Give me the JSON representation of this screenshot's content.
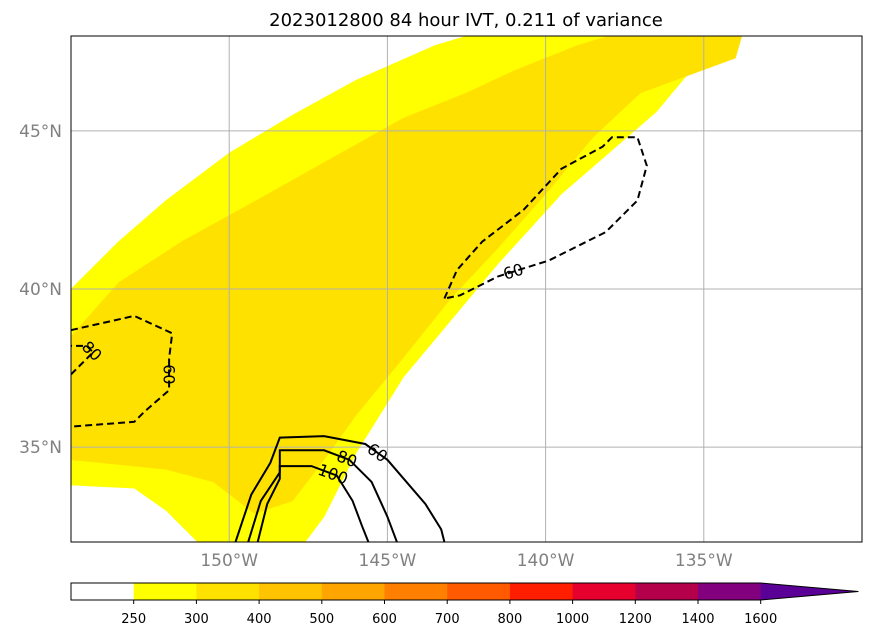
{
  "chart_data": {
    "type": "contour map",
    "title": "2023012800 84 hour IVT, 0.211 of variance",
    "xlabel": "",
    "ylabel": "",
    "lon_range": [
      -155,
      -130
    ],
    "lat_range": [
      32,
      48
    ],
    "x_ticks": [
      {
        "value": -150,
        "label": "150°W"
      },
      {
        "value": -145,
        "label": "145°W"
      },
      {
        "value": -140,
        "label": "140°W"
      },
      {
        "value": -135,
        "label": "135°W"
      }
    ],
    "y_ticks": [
      {
        "value": 35,
        "label": "35°N"
      },
      {
        "value": 40,
        "label": "40°N"
      },
      {
        "value": 45,
        "label": "45°N"
      }
    ],
    "grid": true,
    "colorbar": {
      "orientation": "horizontal",
      "extend": "max",
      "levels": [
        0,
        250,
        300,
        400,
        500,
        600,
        700,
        800,
        1000,
        1200,
        1400,
        1600
      ],
      "tick_labels": [
        "250",
        "300",
        "400",
        "500",
        "600",
        "700",
        "800",
        "1000",
        "1200",
        "1400",
        "1600"
      ],
      "colors": [
        "#ffffff",
        "#ffff00",
        "#ffe100",
        "#ffc300",
        "#ffa500",
        "#ff8000",
        "#ff5a00",
        "#ff1e00",
        "#e6002d",
        "#b4004b",
        "#82007d",
        "#5a0096"
      ]
    },
    "filled_regions": [
      {
        "range": "250-300",
        "color": "#ffff00",
        "polygon": [
          [
            -155,
            40
          ],
          [
            -153.5,
            41.5
          ],
          [
            -152,
            42.8
          ],
          [
            -150,
            44.3
          ],
          [
            -148,
            45.5
          ],
          [
            -146,
            46.6
          ],
          [
            -143.5,
            47.7
          ],
          [
            -142.5,
            48
          ],
          [
            -133.9,
            48
          ],
          [
            -135.5,
            46.8
          ],
          [
            -136.5,
            45.6
          ],
          [
            -138,
            44.3
          ],
          [
            -139.5,
            43
          ],
          [
            -141.5,
            40.8
          ],
          [
            -143,
            39
          ],
          [
            -144.5,
            37.2
          ],
          [
            -146,
            34.8
          ],
          [
            -147,
            32.8
          ],
          [
            -147.6,
            32
          ],
          [
            -151,
            32
          ],
          [
            -152,
            33
          ],
          [
            -153,
            33.7
          ],
          [
            -155,
            33.8
          ]
        ]
      },
      {
        "range": "300-400",
        "color": "#ffe100",
        "polygon": [
          [
            -155,
            38.5
          ],
          [
            -153.5,
            40.2
          ],
          [
            -151.5,
            41.5
          ],
          [
            -149.5,
            42.6
          ],
          [
            -147,
            44
          ],
          [
            -144.5,
            45.4
          ],
          [
            -142.5,
            46.2
          ],
          [
            -141,
            46.9
          ],
          [
            -139,
            47.7
          ],
          [
            -138,
            48
          ],
          [
            -133.8,
            48
          ],
          [
            -134,
            47.3
          ],
          [
            -137,
            46.2
          ],
          [
            -138.5,
            44.8
          ],
          [
            -140,
            43
          ],
          [
            -141.5,
            41.3
          ],
          [
            -143,
            39.7
          ],
          [
            -144.6,
            37.7
          ],
          [
            -146,
            36
          ],
          [
            -147,
            34.6
          ],
          [
            -148,
            33.3
          ],
          [
            -149.2,
            32.9
          ],
          [
            -150.5,
            33.9
          ],
          [
            -152,
            34.3
          ],
          [
            -154,
            34.5
          ],
          [
            -155,
            34.6
          ]
        ]
      }
    ],
    "contours": [
      {
        "level": 60,
        "style": "dashed",
        "label": "60",
        "points": [
          [
            -143.2,
            39.7
          ],
          [
            -142.8,
            40.6
          ],
          [
            -142,
            41.5
          ],
          [
            -140.7,
            42.5
          ],
          [
            -139.5,
            43.8
          ],
          [
            -138.2,
            44.5
          ],
          [
            -137.9,
            44.8
          ],
          [
            -137.1,
            44.8
          ],
          [
            -136.8,
            43.9
          ],
          [
            -137.1,
            42.8
          ],
          [
            -138.1,
            41.8
          ],
          [
            -139.9,
            40.9
          ],
          [
            -141.5,
            40.4
          ],
          [
            -142.7,
            39.8
          ],
          [
            -143.2,
            39.7
          ]
        ]
      },
      {
        "level": 60,
        "style": "dashed",
        "label": "60",
        "points": [
          [
            -155,
            38.7
          ],
          [
            -153,
            39.15
          ],
          [
            -151.8,
            38.6
          ],
          [
            -151.9,
            37.8
          ],
          [
            -151.9,
            36.8
          ],
          [
            -152.7,
            36.1
          ],
          [
            -153,
            35.8
          ],
          [
            -155,
            35.65
          ]
        ]
      },
      {
        "level": 80,
        "style": "dashed",
        "label": "80",
        "points": [
          [
            -155,
            37.3
          ],
          [
            -154.3,
            38
          ],
          [
            -154.5,
            38.2
          ],
          [
            -155,
            38.2
          ]
        ]
      },
      {
        "level": 60,
        "style": "solid",
        "label": "60",
        "points": [
          [
            -149.8,
            32
          ],
          [
            -149.3,
            33.5
          ],
          [
            -148.7,
            34.5
          ],
          [
            -148.4,
            35.3
          ],
          [
            -147,
            35.35
          ],
          [
            -145.7,
            35.1
          ],
          [
            -145,
            34.6
          ],
          [
            -143.8,
            33.2
          ],
          [
            -143.3,
            32.4
          ],
          [
            -143.2,
            32
          ]
        ]
      },
      {
        "level": 80,
        "style": "solid",
        "label": "80",
        "points": [
          [
            -149.4,
            32
          ],
          [
            -149,
            33.3
          ],
          [
            -148.4,
            34.2
          ],
          [
            -148.4,
            34.9
          ],
          [
            -147,
            34.9
          ],
          [
            -146.2,
            34.6
          ],
          [
            -145.5,
            33.9
          ],
          [
            -145,
            32.8
          ],
          [
            -144.7,
            32
          ]
        ]
      },
      {
        "level": 100,
        "style": "solid",
        "label": "100",
        "points": [
          [
            -149.1,
            32
          ],
          [
            -148.8,
            33.2
          ],
          [
            -148.4,
            34
          ],
          [
            -148.4,
            34.4
          ],
          [
            -147.4,
            34.4
          ],
          [
            -146.6,
            34.1
          ],
          [
            -146.1,
            33.3
          ],
          [
            -145.8,
            32.5
          ],
          [
            -145.6,
            32
          ]
        ]
      }
    ]
  }
}
